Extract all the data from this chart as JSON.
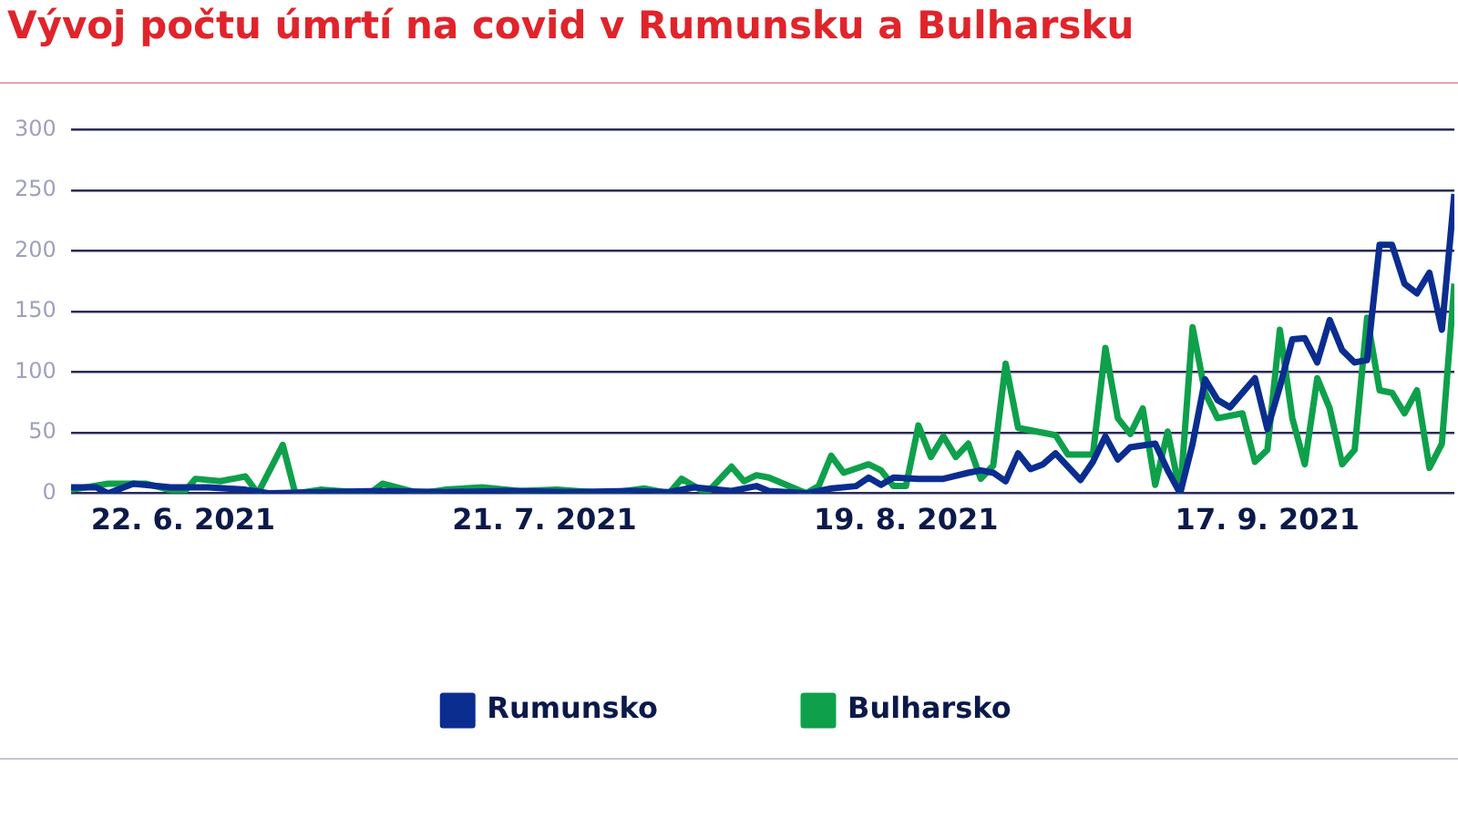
{
  "chart_data": {
    "type": "line",
    "title": "Vývoj počtu úmrtí na covid v Rumunsku a Bulharsku",
    "xlim": [
      "2021-06-13",
      "2021-10-02"
    ],
    "xticks": [
      {
        "value": "2021-06-22",
        "label": "22. 6. 2021"
      },
      {
        "value": "2021-07-21",
        "label": "21. 7. 2021"
      },
      {
        "value": "2021-08-19",
        "label": "19. 8. 2021"
      },
      {
        "value": "2021-09-17",
        "label": "17. 9. 2021"
      }
    ],
    "ylim": [
      0,
      300
    ],
    "yticks": [
      0,
      50,
      100,
      150,
      200,
      250,
      300
    ],
    "grid": "y",
    "legend": "bottom",
    "series": [
      {
        "name": "Rumunsko",
        "color": "#0a2d8f",
        "x": [
          "2021-06-13",
          "2021-06-15",
          "2021-06-16",
          "2021-06-18",
          "2021-06-21",
          "2021-06-24",
          "2021-06-27",
          "2021-06-29",
          "2021-07-03",
          "2021-07-08",
          "2021-07-13",
          "2021-07-18",
          "2021-07-23",
          "2021-07-28",
          "2021-07-31",
          "2021-08-02",
          "2021-08-05",
          "2021-08-07",
          "2021-08-08",
          "2021-08-11",
          "2021-08-13",
          "2021-08-15",
          "2021-08-16",
          "2021-08-17",
          "2021-08-18",
          "2021-08-20",
          "2021-08-22",
          "2021-08-24",
          "2021-08-25",
          "2021-08-26",
          "2021-08-27",
          "2021-08-28",
          "2021-08-29",
          "2021-08-30",
          "2021-08-31",
          "2021-09-02",
          "2021-09-03",
          "2021-09-04",
          "2021-09-05",
          "2021-09-06",
          "2021-09-08",
          "2021-09-09",
          "2021-09-10",
          "2021-09-11",
          "2021-09-12",
          "2021-09-13",
          "2021-09-14",
          "2021-09-16",
          "2021-09-17",
          "2021-09-18",
          "2021-09-19",
          "2021-09-20",
          "2021-09-21",
          "2021-09-22",
          "2021-09-23",
          "2021-09-24",
          "2021-09-25",
          "2021-09-26",
          "2021-09-27",
          "2021-09-28",
          "2021-09-29",
          "2021-09-30",
          "2021-10-01",
          "2021-10-02"
        ],
        "values": [
          5,
          5,
          0,
          8,
          5,
          5,
          3,
          0,
          1,
          2,
          1,
          2,
          1,
          2,
          1,
          5,
          2,
          6,
          2,
          0,
          4,
          6,
          13,
          7,
          13,
          12,
          12,
          17,
          19,
          17,
          10,
          33,
          20,
          24,
          33,
          11,
          26,
          47,
          28,
          38,
          41,
          19,
          0,
          41,
          94,
          77,
          71,
          95,
          53,
          88,
          127,
          128,
          108,
          143,
          118,
          108,
          110,
          205,
          205,
          173,
          165,
          182,
          135,
          247
        ]
      },
      {
        "name": "Bulharsko",
        "color": "#0ea04b",
        "x": [
          "2021-06-13",
          "2021-06-16",
          "2021-06-19",
          "2021-06-22",
          "2021-06-23",
          "2021-06-25",
          "2021-06-27",
          "2021-06-28",
          "2021-06-30",
          "2021-07-01",
          "2021-07-03",
          "2021-07-07",
          "2021-07-08",
          "2021-07-11",
          "2021-07-13",
          "2021-07-16",
          "2021-07-19",
          "2021-07-22",
          "2021-07-26",
          "2021-07-29",
          "2021-07-31",
          "2021-08-01",
          "2021-08-03",
          "2021-08-05",
          "2021-08-06",
          "2021-08-07",
          "2021-08-08",
          "2021-08-11",
          "2021-08-12",
          "2021-08-13",
          "2021-08-14",
          "2021-08-16",
          "2021-08-17",
          "2021-08-18",
          "2021-08-19",
          "2021-08-20",
          "2021-08-21",
          "2021-08-22",
          "2021-08-23",
          "2021-08-24",
          "2021-08-25",
          "2021-08-26",
          "2021-08-27",
          "2021-08-28",
          "2021-08-31",
          "2021-09-01",
          "2021-09-03",
          "2021-09-04",
          "2021-09-05",
          "2021-09-06",
          "2021-09-07",
          "2021-09-08",
          "2021-09-09",
          "2021-09-10",
          "2021-09-11",
          "2021-09-12",
          "2021-09-13",
          "2021-09-15",
          "2021-09-16",
          "2021-09-17",
          "2021-09-18",
          "2021-09-19",
          "2021-09-20",
          "2021-09-21",
          "2021-09-22",
          "2021-09-23",
          "2021-09-24",
          "2021-09-25",
          "2021-09-26",
          "2021-09-27",
          "2021-09-28",
          "2021-09-29",
          "2021-09-30",
          "2021-10-01",
          "2021-10-02"
        ],
        "values": [
          3,
          8,
          8,
          0,
          12,
          10,
          14,
          0,
          40,
          0,
          3,
          0,
          8,
          0,
          3,
          5,
          2,
          3,
          0,
          4,
          0,
          12,
          0,
          22,
          10,
          15,
          13,
          0,
          6,
          31,
          17,
          24,
          19,
          6,
          6,
          56,
          30,
          47,
          30,
          41,
          12,
          23,
          107,
          54,
          48,
          32,
          32,
          120,
          62,
          49,
          70,
          7,
          51,
          0,
          137,
          83,
          62,
          66,
          26,
          36,
          135,
          62,
          24,
          95,
          70,
          24,
          36,
          145,
          85,
          83,
          66,
          85,
          21,
          41,
          173
        ]
      }
    ]
  }
}
